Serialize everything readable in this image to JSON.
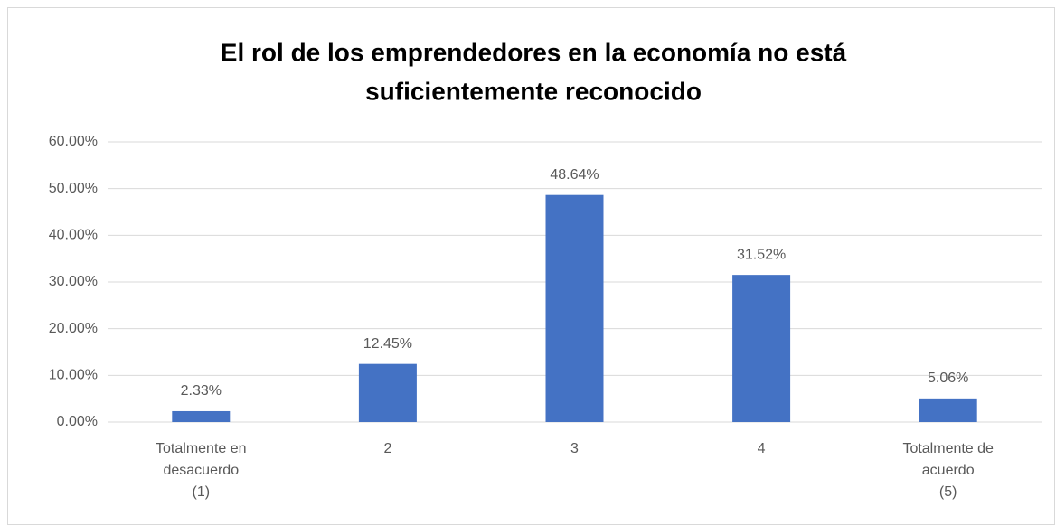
{
  "chart_data": {
    "type": "bar",
    "title": [
      "El rol de los emprendedores en la economía no está",
      "suficientemente reconocido"
    ],
    "categories": [
      [
        "Totalmente en",
        "desacuerdo",
        "(1)"
      ],
      [
        "2"
      ],
      [
        "3"
      ],
      [
        "4"
      ],
      [
        "Totalmente de",
        "acuerdo",
        "(5)"
      ]
    ],
    "values": [
      2.33,
      12.45,
      48.64,
      31.52,
      5.06
    ],
    "value_labels": [
      "2.33%",
      "12.45%",
      "48.64%",
      "31.52%",
      "5.06%"
    ],
    "color": "#4472c4",
    "ylim": [
      0,
      60
    ],
    "yticks": [
      {
        "value": 0,
        "label": "0.00%"
      },
      {
        "value": 10,
        "label": "10.00%"
      },
      {
        "value": 20,
        "label": "20.00%"
      },
      {
        "value": 30,
        "label": "30.00%"
      },
      {
        "value": 40,
        "label": "40.00%"
      },
      {
        "value": 50,
        "label": "50.00%"
      },
      {
        "value": 60,
        "label": "60.00%"
      }
    ],
    "grid": true
  }
}
